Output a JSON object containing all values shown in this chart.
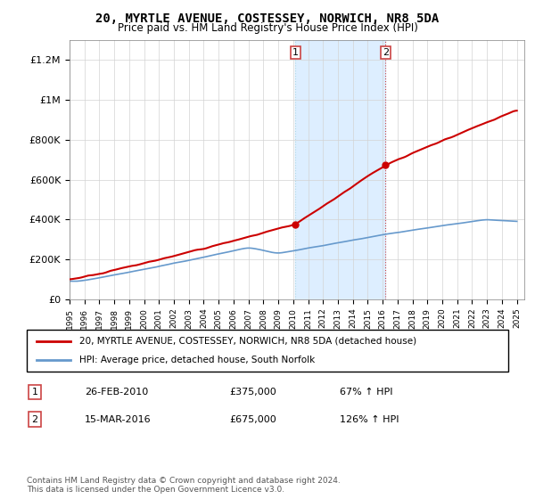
{
  "title": "20, MYRTLE AVENUE, COSTESSEY, NORWICH, NR8 5DA",
  "subtitle": "Price paid vs. HM Land Registry's House Price Index (HPI)",
  "ylim": [
    0,
    1300000
  ],
  "yticks": [
    0,
    200000,
    400000,
    600000,
    800000,
    1000000,
    1200000
  ],
  "ytick_labels": [
    "£0",
    "£200K",
    "£400K",
    "£600K",
    "£800K",
    "£1M",
    "£1.2M"
  ],
  "x_start_year": 1995,
  "x_end_year": 2025,
  "sale1_date": "26-FEB-2010",
  "sale1_price": 375000,
  "sale1_pct": "67%",
  "sale1_label": "1",
  "sale1_year": 2010.15,
  "sale2_date": "15-MAR-2016",
  "sale2_price": 675000,
  "sale2_label": "2",
  "sale2_pct": "126%",
  "sale2_year": 2016.2,
  "legend_line1": "20, MYRTLE AVENUE, COSTESSEY, NORWICH, NR8 5DA (detached house)",
  "legend_line2": "HPI: Average price, detached house, South Norfolk",
  "footer": "Contains HM Land Registry data © Crown copyright and database right 2024.\nThis data is licensed under the Open Government Licence v3.0.",
  "property_color": "#cc0000",
  "hpi_color": "#6699cc",
  "shading_color": "#ddeeff"
}
